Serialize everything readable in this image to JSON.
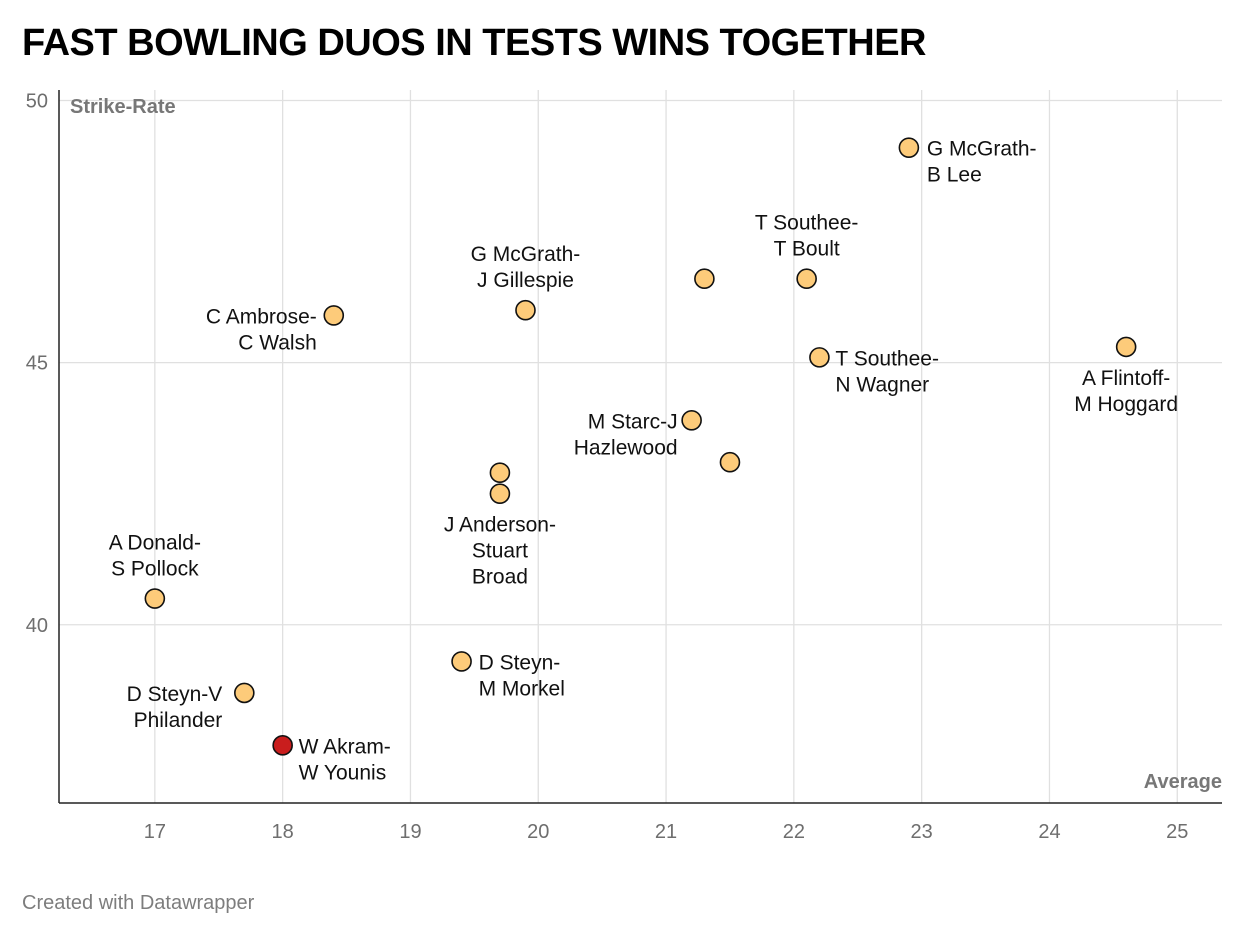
{
  "title": "FAST BOWLING DUOS IN TESTS WINS TOGETHER",
  "footer": "Created with Datawrapper",
  "colors": {
    "point": "#fdcb7a",
    "highlight": "#c91d1d",
    "stroke": "#111111",
    "grid": "#e0e0e0"
  },
  "chart_data": {
    "type": "scatter",
    "xlabel": "Average",
    "ylabel": "Strike-Rate",
    "xlim": [
      16.25,
      25.35
    ],
    "ylim": [
      36.6,
      50.2
    ],
    "xticks": [
      "17",
      "18",
      "19",
      "20",
      "21",
      "22",
      "23",
      "24",
      "25"
    ],
    "yticks": [
      "40",
      "45",
      "50"
    ],
    "grid": true,
    "points": [
      {
        "x": 22.9,
        "y": 49.1,
        "label": [
          "G McGrath-",
          "B Lee"
        ],
        "highlight": false
      },
      {
        "x": 22.1,
        "y": 46.6,
        "label": [
          "T Southee-",
          "T Boult"
        ],
        "highlight": false
      },
      {
        "x": 21.3,
        "y": 46.6,
        "label": [],
        "highlight": false
      },
      {
        "x": 19.9,
        "y": 46.0,
        "label": [
          "G McGrath-",
          "J Gillespie"
        ],
        "highlight": false
      },
      {
        "x": 18.4,
        "y": 45.9,
        "label": [
          "C Ambrose-",
          "C Walsh"
        ],
        "highlight": false
      },
      {
        "x": 22.2,
        "y": 45.1,
        "label": [
          "T Southee-",
          "N Wagner"
        ],
        "highlight": false
      },
      {
        "x": 24.6,
        "y": 45.3,
        "label": [
          "A Flintoff-",
          "M Hoggard"
        ],
        "highlight": false
      },
      {
        "x": 21.2,
        "y": 43.9,
        "label": [
          "M Starc-J",
          "Hazlewood"
        ],
        "highlight": false
      },
      {
        "x": 21.5,
        "y": 43.1,
        "label": [],
        "highlight": false
      },
      {
        "x": 19.7,
        "y": 42.9,
        "label": [],
        "highlight": false
      },
      {
        "x": 19.7,
        "y": 42.5,
        "label": [
          "J Anderson-",
          "Stuart",
          "Broad"
        ],
        "highlight": false
      },
      {
        "x": 17.0,
        "y": 40.5,
        "label": [
          "A Donald-",
          "S Pollock"
        ],
        "highlight": false
      },
      {
        "x": 19.4,
        "y": 39.3,
        "label": [
          "D Steyn-",
          "M Morkel"
        ],
        "highlight": false
      },
      {
        "x": 17.7,
        "y": 38.7,
        "label": [
          "D Steyn-V",
          "Philander"
        ],
        "highlight": false
      },
      {
        "x": 18.0,
        "y": 37.7,
        "label": [
          "W Akram-",
          "W Younis"
        ],
        "highlight": true
      }
    ]
  }
}
